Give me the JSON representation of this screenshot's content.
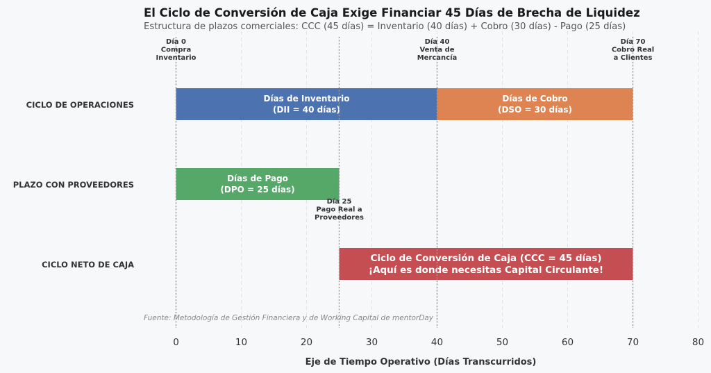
{
  "chart_data": {
    "type": "bar",
    "orientation": "horizontal",
    "title": "El Ciclo de Conversión de Caja Exige Financiar 45 Días de Brecha de Liquidez",
    "subtitle": "Estructura de plazos comerciales: CCC (45 días) = Inventario (40 días) + Cobro (30 días) - Pago (25 días)",
    "xlabel": "Eje de Tiempo Operativo (Días Transcurridos)",
    "xlim": [
      0,
      80
    ],
    "xticks": [
      0,
      10,
      20,
      30,
      40,
      50,
      60,
      70,
      80
    ],
    "grid": "vertical dashed",
    "source": "Fuente: Metodología de Gestión Financiera y de Working Capital de mentorDay",
    "rows": [
      "CICLO DE OPERACIONES",
      "PLAZO CON PROVEEDORES",
      "CICLO NETO DE CAJA"
    ],
    "segments": [
      {
        "row": 0,
        "start": 0,
        "end": 40,
        "color": "#4c72b0",
        "label1": "Días de Inventario",
        "label2": "(DII = 40 días)"
      },
      {
        "row": 0,
        "start": 40,
        "end": 70,
        "color": "#dd8452",
        "label1": "Días de Cobro",
        "label2": "(DSO = 30 días)"
      },
      {
        "row": 1,
        "start": 0,
        "end": 25,
        "color": "#55a868",
        "label1": "Días de Pago",
        "label2": "(DPO = 25 días)"
      },
      {
        "row": 2,
        "start": 25,
        "end": 70,
        "color": "#c44e52",
        "label1": "Ciclo de Conversión de Caja (CCC = 45 días)",
        "label2": "¡Aquí es donde necesitas Capital Circulante!"
      }
    ],
    "milestones": [
      {
        "day": 0,
        "lines": [
          "Día 0",
          "Compra",
          "Inventario"
        ],
        "position": "top"
      },
      {
        "day": 40,
        "lines": [
          "Día 40",
          "Venta de",
          "Mercancía"
        ],
        "position": "top"
      },
      {
        "day": 70,
        "lines": [
          "Día 70",
          "Cobro Real",
          "a Clientes"
        ],
        "position": "top"
      },
      {
        "day": 25,
        "lines": [
          "Día 25",
          "Pago Real a",
          "Proveedores"
        ],
        "position": "below-row-1"
      }
    ]
  }
}
